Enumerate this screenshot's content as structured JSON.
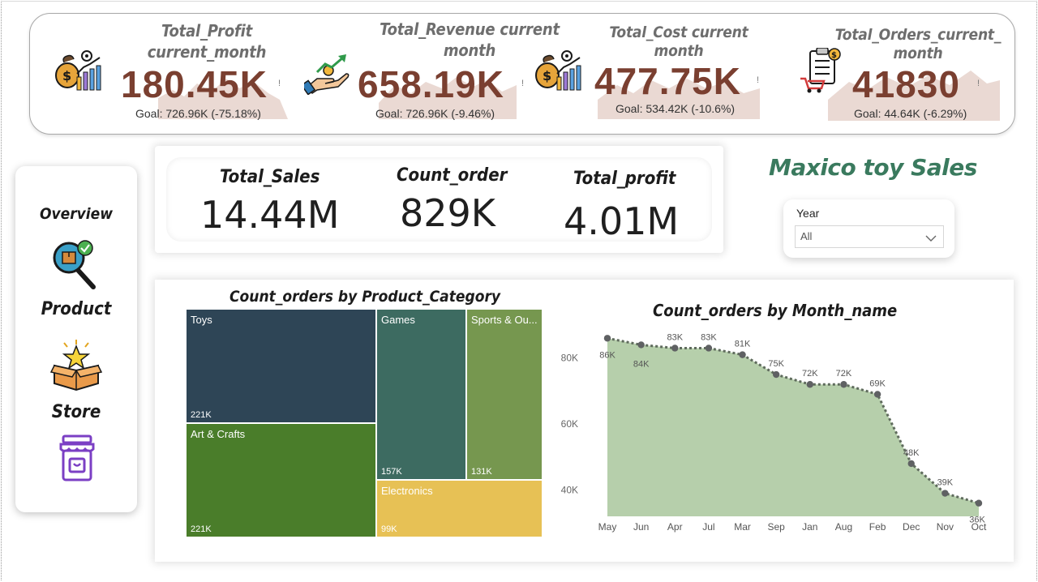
{
  "kpis": [
    {
      "title": "Total_Profit current_month",
      "value": "180.45K",
      "flag": "!",
      "goal": "Goal: 726.96K (-75.18%)",
      "icon": "money-bag-chart-icon"
    },
    {
      "title": "Total_Revenue current month",
      "value": "658.19K",
      "flag": "!",
      "goal": "Goal: 726.96K (-9.46%)",
      "icon": "revenue-growth-icon"
    },
    {
      "title": "Total_Cost current month",
      "value": "477.75K",
      "flag": "!",
      "goal": "Goal: 534.42K (-10.6%)",
      "icon": "money-bag-chart-icon"
    },
    {
      "title": "Total_Orders_current_ month",
      "value": "41830",
      "flag": "!",
      "goal": "Goal: 44.64K (-6.29%)",
      "icon": "order-checklist-icon"
    }
  ],
  "summary": {
    "sales_label": "Total_Sales",
    "sales_value": "14.44M",
    "count_label": "Count_order",
    "count_value": "829K",
    "profit_label": "Total_profit",
    "profit_value": "4.01M"
  },
  "brand": {
    "title": "Maxico toy Sales"
  },
  "slicer": {
    "label": "Year",
    "value": "All"
  },
  "nav": {
    "overview": "Overview",
    "product": "Product",
    "store": "Store"
  },
  "colors": {
    "kpi_value": "#7a3f30",
    "brand": "#3a7a5e",
    "toys": "#2e4556",
    "art_crafts": "#4a7d2a",
    "games": "#3d6b61",
    "sports": "#76974f",
    "electronics": "#e7c155",
    "area_fill": "#b6cfab"
  },
  "treemap": {
    "title": "Count_orders by Product_Category",
    "cells": [
      {
        "label": "Toys",
        "value": "221K"
      },
      {
        "label": "Art & Crafts",
        "value": "221K"
      },
      {
        "label": "Games",
        "value": "157K"
      },
      {
        "label": "Sports & Ou...",
        "value": "131K"
      },
      {
        "label": "Electronics",
        "value": "99K"
      }
    ]
  },
  "chart_data": {
    "type": "area",
    "title": "Count_orders by Month_name",
    "categories": [
      "May",
      "Jun",
      "Apr",
      "Jul",
      "Mar",
      "Sep",
      "Jan",
      "Aug",
      "Feb",
      "Dec",
      "Nov",
      "Oct"
    ],
    "values": [
      86,
      84,
      83,
      83,
      81,
      75,
      72,
      72,
      69,
      48,
      39,
      36
    ],
    "data_labels": [
      "86K",
      "84K",
      "83K",
      "83K",
      "81K",
      "75K",
      "72K",
      "72K",
      "69K",
      "48K",
      "39K",
      "36K"
    ],
    "y_ticks": [
      "40K",
      "60K",
      "80K"
    ],
    "ylim": [
      32,
      90
    ],
    "unit": "K",
    "xlabel": "",
    "ylabel": "",
    "grid": false
  }
}
